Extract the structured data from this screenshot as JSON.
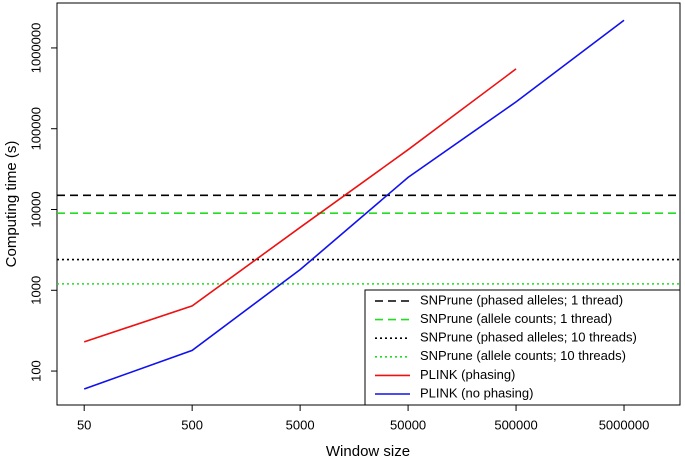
{
  "chart_data": {
    "type": "line",
    "x_label": "Window size",
    "y_label": "Computing time (s)",
    "log_x": true,
    "log_y": true,
    "x": [
      50,
      500,
      5000,
      50000,
      500000,
      5000000
    ],
    "xlim": [
      28,
      16500000
    ],
    "xticks": [
      50,
      500,
      5000,
      50000,
      500000,
      5000000
    ],
    "ylim": [
      38,
      3600000
    ],
    "yticks": [
      100,
      1000,
      10000,
      100000,
      1000000
    ],
    "legend": "bottom-right",
    "series": [
      {
        "name": "SNPrune (phased alleles; 1 thread)",
        "color": "#000000",
        "linestyle": "dashed",
        "hline": 15000
      },
      {
        "name": "SNPrune (allele counts; 1 thread)",
        "color": "#22dd22",
        "linestyle": "dashed",
        "hline": 9000
      },
      {
        "name": "SNPrune (phased alleles; 10 threads)",
        "color": "#000000",
        "linestyle": "dotted",
        "hline": 2400
      },
      {
        "name": "SNPrune (allele counts; 10 threads)",
        "color": "#22dd22",
        "linestyle": "dotted",
        "hline": 1200
      },
      {
        "name": "PLINK (phasing)",
        "color": "#ee1111",
        "linestyle": "solid",
        "values": [
          230,
          640,
          6000,
          55000,
          550000,
          null
        ]
      },
      {
        "name": "PLINK (no phasing)",
        "color": "#1111ee",
        "linestyle": "solid",
        "values": [
          60,
          180,
          1800,
          25000,
          215000,
          2200000
        ]
      }
    ]
  }
}
